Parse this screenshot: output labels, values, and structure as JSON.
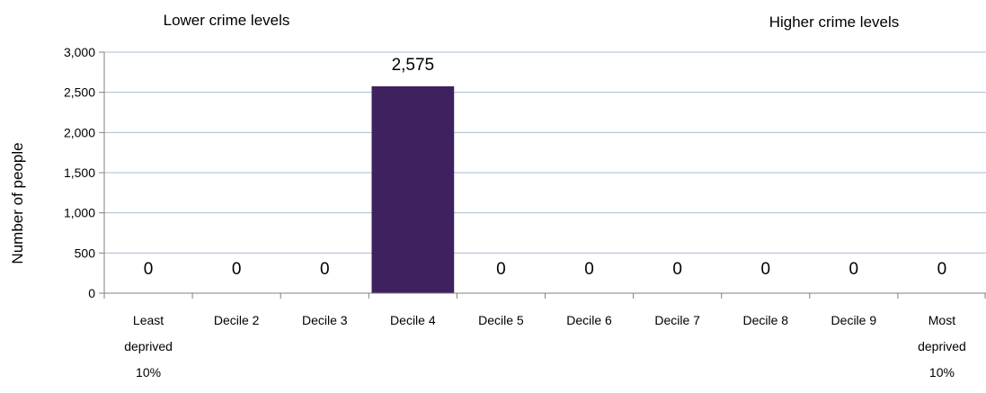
{
  "chart_data": {
    "type": "bar",
    "header_left": "Lower crime levels",
    "header_right": "Higher crime levels",
    "ylabel": "Number of people",
    "ylim": [
      0,
      3000
    ],
    "yticks": [
      0,
      500,
      1000,
      1500,
      2000,
      2500,
      3000
    ],
    "ytick_labels": [
      "0",
      "500",
      "1,000",
      "1,500",
      "2,000",
      "2,500",
      "3,000"
    ],
    "grid": true,
    "categories": [
      [
        "Least",
        "deprived",
        "10%"
      ],
      [
        "Decile 2"
      ],
      [
        "Decile 3"
      ],
      [
        "Decile 4"
      ],
      [
        "Decile 5"
      ],
      [
        "Decile 6"
      ],
      [
        "Decile 7"
      ],
      [
        "Decile 8"
      ],
      [
        "Decile 9"
      ],
      [
        "Most",
        "deprived",
        "10%"
      ]
    ],
    "values": [
      0,
      0,
      0,
      2575,
      0,
      0,
      0,
      0,
      0,
      0
    ],
    "data_labels": [
      "0",
      "0",
      "0",
      "2,575",
      "0",
      "0",
      "0",
      "0",
      "0",
      "0"
    ],
    "bar_color": "#40215f",
    "grid_color": "#a9bcd0",
    "axis_color": "#808080"
  }
}
